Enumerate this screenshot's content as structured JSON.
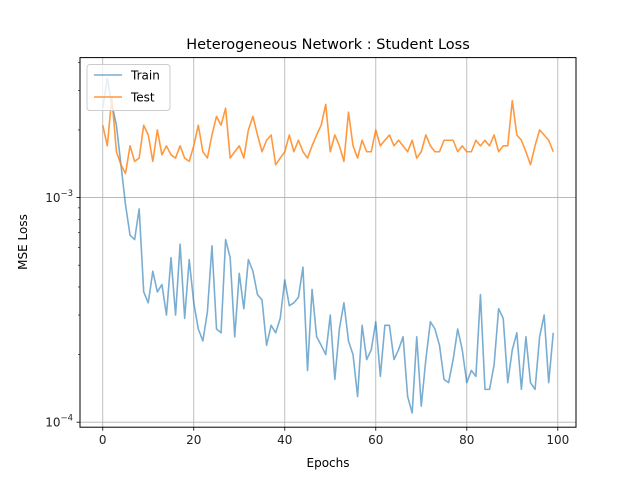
{
  "chart_data": {
    "type": "line",
    "title": "Heterogeneous Network : Student Loss",
    "xlabel": "Epochs",
    "ylabel": "MSE Loss",
    "yscale": "log",
    "xlim": [
      -5,
      104
    ],
    "ylim": [
      9.5e-05,
      0.0042
    ],
    "grid": true,
    "legend_position": "top-left",
    "x_ticks": [
      0,
      20,
      40,
      60,
      80,
      100
    ],
    "x_tick_labels": [
      "0",
      "20",
      "40",
      "60",
      "80",
      "100"
    ],
    "y_ticks": [
      0.0001,
      0.001
    ],
    "y_tick_labels": [
      "10^-4",
      "10^-3"
    ],
    "x": [
      0,
      1,
      2,
      3,
      4,
      5,
      6,
      7,
      8,
      9,
      10,
      11,
      12,
      13,
      14,
      15,
      16,
      17,
      18,
      19,
      20,
      21,
      22,
      23,
      24,
      25,
      26,
      27,
      28,
      29,
      30,
      31,
      32,
      33,
      34,
      35,
      36,
      37,
      38,
      39,
      40,
      41,
      42,
      43,
      44,
      45,
      46,
      47,
      48,
      49,
      50,
      51,
      52,
      53,
      54,
      55,
      56,
      57,
      58,
      59,
      60,
      61,
      62,
      63,
      64,
      65,
      66,
      67,
      68,
      69,
      70,
      71,
      72,
      73,
      74,
      75,
      76,
      77,
      78,
      79,
      80,
      81,
      82,
      83,
      84,
      85,
      86,
      87,
      88,
      89,
      90,
      91,
      92,
      93,
      94,
      95,
      96,
      97,
      98,
      99
    ],
    "series": [
      {
        "name": "Train",
        "color": "#1f77b4",
        "values": [
          0.0025,
          0.0034,
          0.0026,
          0.0021,
          0.0014,
          0.00093,
          0.00068,
          0.00065,
          0.00089,
          0.00038,
          0.00034,
          0.00047,
          0.00038,
          0.00041,
          0.0003,
          0.00054,
          0.0003,
          0.00062,
          0.00029,
          0.00053,
          0.00034,
          0.00026,
          0.00023,
          0.00031,
          0.00061,
          0.00026,
          0.00025,
          0.00065,
          0.00054,
          0.00024,
          0.00046,
          0.00032,
          0.00053,
          0.00047,
          0.00037,
          0.00035,
          0.00022,
          0.00027,
          0.00025,
          0.00029,
          0.00043,
          0.00033,
          0.00034,
          0.00036,
          0.00049,
          0.00017,
          0.00039,
          0.00024,
          0.00022,
          0.0002,
          0.0003,
          0.000155,
          0.00026,
          0.00034,
          0.00023,
          0.0002,
          0.00013,
          0.00027,
          0.00019,
          0.00021,
          0.00028,
          0.00016,
          0.00027,
          0.00027,
          0.00019,
          0.00021,
          0.00024,
          0.00013,
          0.00011,
          0.00024,
          0.000118,
          0.00019,
          0.00028,
          0.00026,
          0.00022,
          0.000155,
          0.00015,
          0.00019,
          0.00026,
          0.00021,
          0.00015,
          0.00017,
          0.00016,
          0.00037,
          0.00014,
          0.00014,
          0.00018,
          0.00032,
          0.00029,
          0.00015,
          0.00021,
          0.00025,
          0.00014,
          0.00024,
          0.00015,
          0.00014,
          0.00024,
          0.0003,
          0.00015,
          0.00025
        ]
      },
      {
        "name": "Test",
        "color": "#ff7f0e",
        "values": [
          0.0021,
          0.0017,
          0.0028,
          0.0016,
          0.0014,
          0.00128,
          0.0017,
          0.00145,
          0.0015,
          0.0021,
          0.0019,
          0.00145,
          0.002,
          0.00155,
          0.0017,
          0.00155,
          0.0015,
          0.0017,
          0.0015,
          0.00145,
          0.0017,
          0.0021,
          0.0016,
          0.0015,
          0.0019,
          0.0023,
          0.0021,
          0.0025,
          0.0015,
          0.0016,
          0.0017,
          0.0015,
          0.002,
          0.0023,
          0.0019,
          0.0016,
          0.0018,
          0.0019,
          0.0014,
          0.0015,
          0.0016,
          0.0019,
          0.0016,
          0.0018,
          0.0016,
          0.0015,
          0.0017,
          0.0019,
          0.0021,
          0.0026,
          0.0016,
          0.0019,
          0.0017,
          0.00145,
          0.0024,
          0.0017,
          0.0015,
          0.0018,
          0.0016,
          0.0016,
          0.002,
          0.0017,
          0.0018,
          0.0019,
          0.0017,
          0.0018,
          0.0017,
          0.0016,
          0.0018,
          0.0015,
          0.0016,
          0.0019,
          0.0017,
          0.0016,
          0.0016,
          0.0018,
          0.0018,
          0.0018,
          0.0016,
          0.0017,
          0.0016,
          0.0016,
          0.0018,
          0.0017,
          0.0018,
          0.0017,
          0.0019,
          0.0016,
          0.0017,
          0.0017,
          0.0027,
          0.0019,
          0.0018,
          0.0016,
          0.0014,
          0.0017,
          0.002,
          0.0019,
          0.0018,
          0.0016
        ]
      }
    ]
  }
}
